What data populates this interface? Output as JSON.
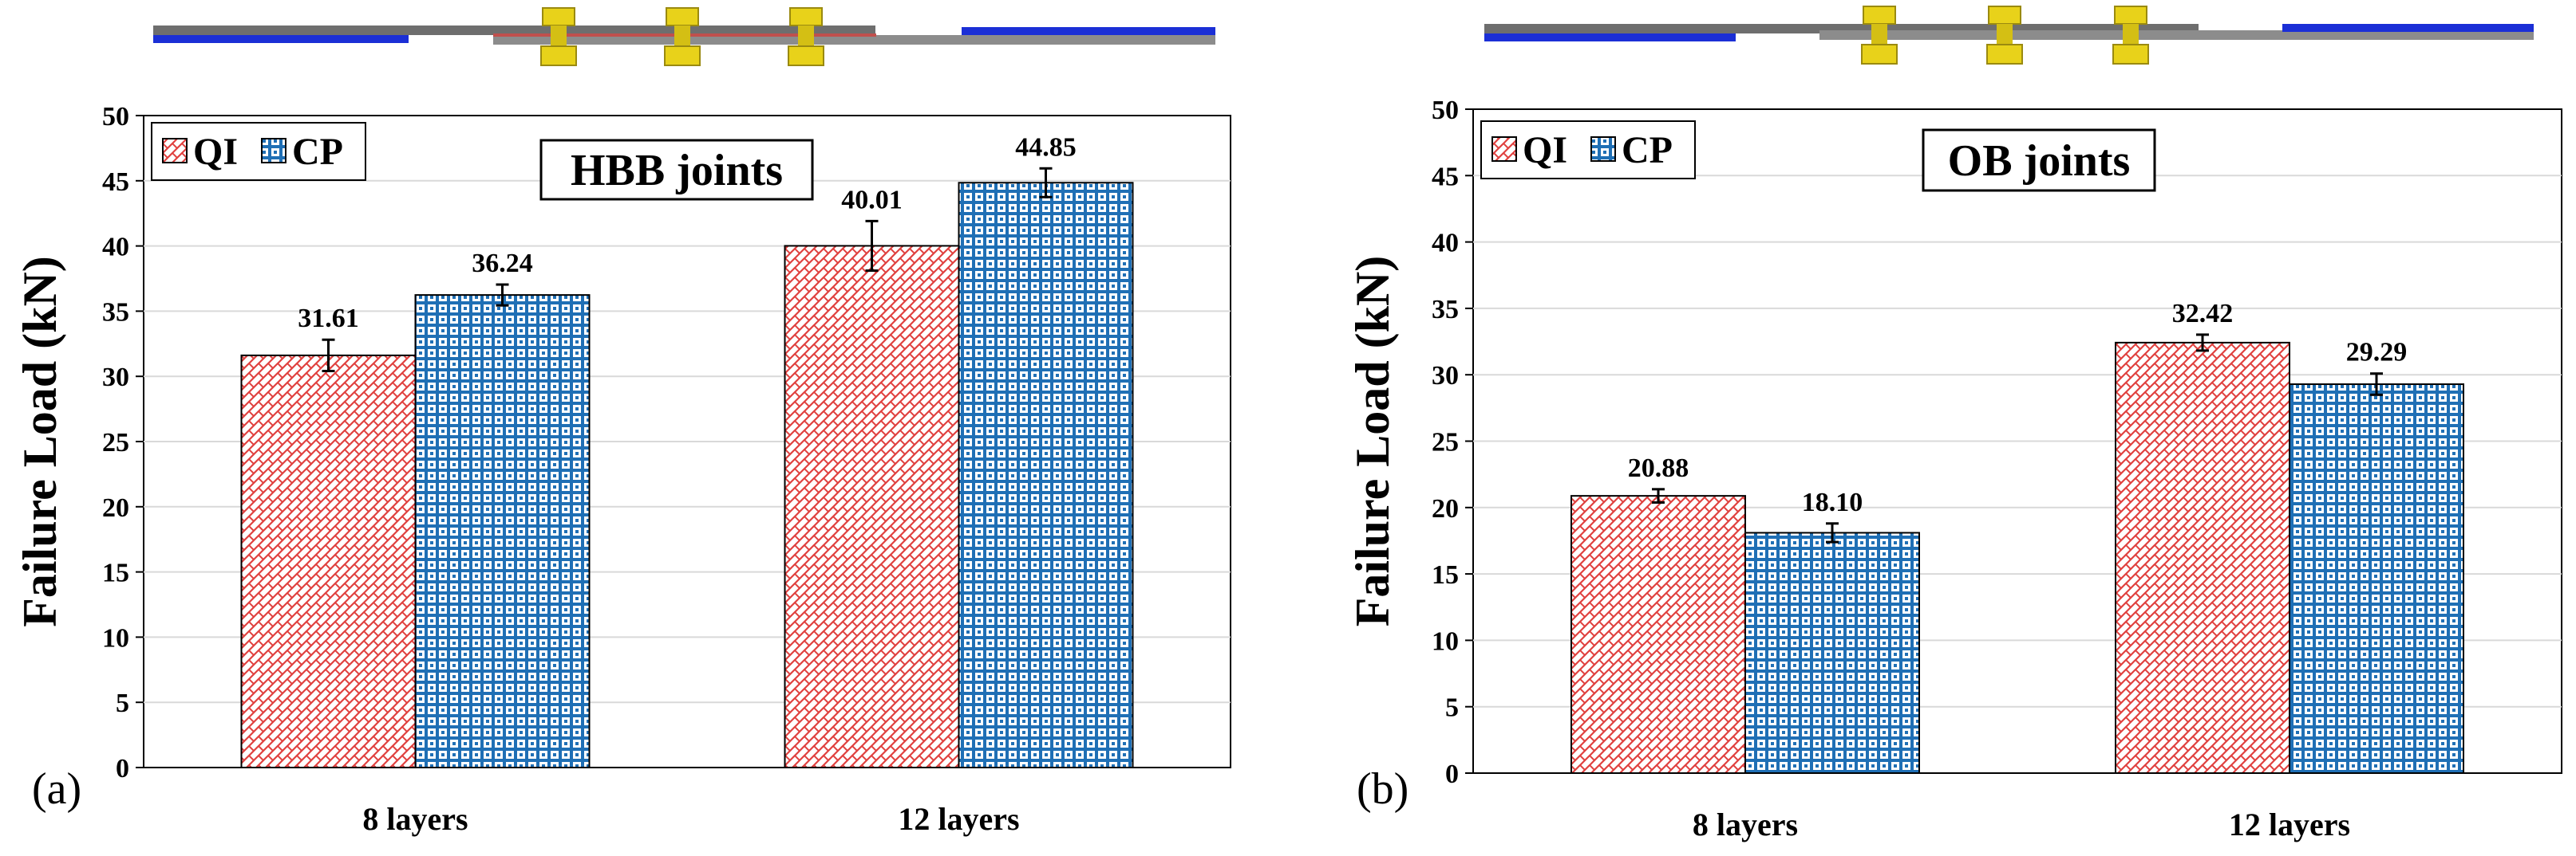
{
  "colors": {
    "qi_pattern": "#e0413f",
    "cp_pattern": "#1f6fb5",
    "grid": "#d9d9d9",
    "plate_grey": "#6e6e6e",
    "plate_blue": "#1b2fd6",
    "bolt_yellow": "#e8d21a"
  },
  "chart_data": [
    {
      "type": "bar",
      "panel_label": "(a)",
      "title": "HBB joints",
      "xlabel": "",
      "ylabel": "Failure Load (kN)",
      "ylim": [
        0,
        50
      ],
      "yticks": [
        "0",
        "5",
        "10",
        "15",
        "20",
        "25",
        "30",
        "35",
        "40",
        "45",
        "50"
      ],
      "grid": true,
      "legend": "top-left",
      "categories": [
        "8 layers",
        "12 layers"
      ],
      "series": [
        {
          "name": "QI",
          "values": [
            31.61,
            40.01
          ],
          "labels": [
            "31.61",
            "40.01"
          ],
          "errors": [
            1.2,
            1.9
          ]
        },
        {
          "name": "CP",
          "values": [
            36.24,
            44.85
          ],
          "labels": [
            "36.24",
            "44.85"
          ],
          "errors": [
            0.8,
            1.1
          ]
        }
      ]
    },
    {
      "type": "bar",
      "panel_label": "(b)",
      "title": "OB joints",
      "xlabel": "",
      "ylabel": "Failure Load (kN)",
      "ylim": [
        0,
        50
      ],
      "yticks": [
        "0",
        "5",
        "10",
        "15",
        "20",
        "25",
        "30",
        "35",
        "40",
        "45",
        "50"
      ],
      "grid": true,
      "legend": "top-left",
      "categories": [
        "8 layers",
        "12 layers"
      ],
      "series": [
        {
          "name": "QI",
          "values": [
            20.88,
            32.42
          ],
          "labels": [
            "20.88",
            "32.42"
          ],
          "errors": [
            0.5,
            0.6
          ]
        },
        {
          "name": "CP",
          "values": [
            18.1,
            29.29
          ],
          "labels": [
            "18.10",
            "29.29"
          ],
          "errors": [
            0.7,
            0.8
          ]
        }
      ]
    }
  ]
}
